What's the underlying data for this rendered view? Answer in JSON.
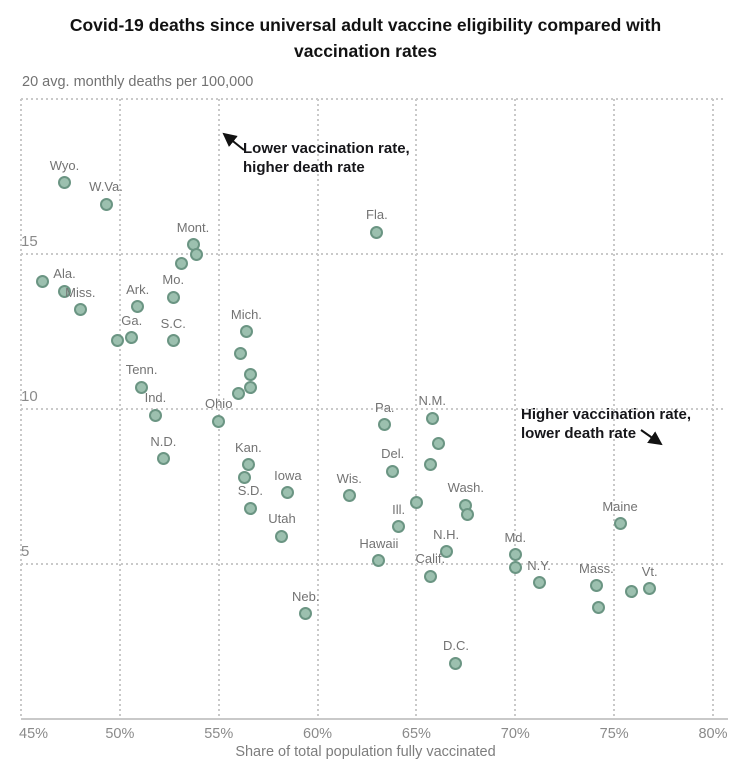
{
  "title": "Covid-19 deaths since universal adult vaccine eligibility compared with vaccination rates",
  "y_axis": {
    "unit_label": "20 avg. monthly deaths per 100,000",
    "tick_labels": [
      "15",
      "10",
      "5"
    ],
    "tick_values": [
      15,
      10,
      5
    ]
  },
  "x_axis": {
    "label": "Share of total population fully vaccinated",
    "tick_labels": [
      "45%",
      "50%",
      "55%",
      "60%",
      "65%",
      "70%",
      "75%",
      "80%"
    ],
    "tick_values": [
      45,
      50,
      55,
      60,
      65,
      70,
      75,
      80
    ]
  },
  "annotations": [
    {
      "id": "lower-vaccination",
      "text": "Lower vaccination rate,\nhigher death rate"
    },
    {
      "id": "higher-vaccination",
      "text": "Higher vaccination rate,\nlower death rate"
    }
  ],
  "colors": {
    "dot_fill": "#9cc0af",
    "dot_stroke": "#6b9583",
    "gridline": "#c9c9c9",
    "title_text": "#121212",
    "axis_text": "#8a8a8a",
    "state_label_text": "#737373",
    "annotation_text": "#16161a"
  },
  "chart_data": {
    "type": "scatter",
    "title": "Covid-19 deaths since universal adult vaccine eligibility compared with vaccination rates",
    "xlabel": "Share of total population fully vaccinated",
    "ylabel": "avg. monthly deaths per 100,000",
    "xlim": [
      45,
      80
    ],
    "ylim": [
      0,
      20
    ],
    "x_ticks": [
      45,
      50,
      55,
      60,
      65,
      70,
      75,
      80
    ],
    "y_gridlines": [
      20,
      15,
      10,
      5
    ],
    "grid": true,
    "points": [
      {
        "state": "Wyo.",
        "x": 47.2,
        "y": 17.3
      },
      {
        "state": "W.Va.",
        "x": 49.3,
        "y": 16.6
      },
      {
        "state": "Mont.",
        "x": 53.7,
        "y": 15.3
      },
      {
        "state": "",
        "x": 53.9,
        "y": 15.0
      },
      {
        "state": "",
        "x": 53.1,
        "y": 14.7
      },
      {
        "state": "",
        "x": 46.1,
        "y": 14.1
      },
      {
        "state": "Ala.",
        "x": 47.2,
        "y": 13.8
      },
      {
        "state": "Miss.",
        "x": 48.0,
        "y": 13.2
      },
      {
        "state": "Ark.",
        "x": 50.9,
        "y": 13.3
      },
      {
        "state": "Mo.",
        "x": 52.7,
        "y": 13.6
      },
      {
        "state": "Fla.",
        "x": 63.0,
        "y": 15.7
      },
      {
        "state": "Ga.",
        "x": 50.6,
        "y": 12.3
      },
      {
        "state": "",
        "x": 49.9,
        "y": 12.2
      },
      {
        "state": "S.C.",
        "x": 52.7,
        "y": 12.2
      },
      {
        "state": "Tenn.",
        "x": 51.1,
        "y": 10.7
      },
      {
        "state": "Ind.",
        "x": 51.8,
        "y": 9.8
      },
      {
        "state": "N.D.",
        "x": 52.2,
        "y": 8.4
      },
      {
        "state": "Ohio",
        "x": 55.0,
        "y": 9.6
      },
      {
        "state": "Mich.",
        "x": 56.4,
        "y": 12.5
      },
      {
        "state": "",
        "x": 56.1,
        "y": 11.8
      },
      {
        "state": "",
        "x": 56.6,
        "y": 11.1
      },
      {
        "state": "",
        "x": 56.6,
        "y": 10.7
      },
      {
        "state": "",
        "x": 56.0,
        "y": 10.5
      },
      {
        "state": "Kan.",
        "x": 56.5,
        "y": 8.2
      },
      {
        "state": "",
        "x": 56.3,
        "y": 7.8
      },
      {
        "state": "S.D.",
        "x": 56.6,
        "y": 6.8
      },
      {
        "state": "Iowa",
        "x": 58.5,
        "y": 7.3
      },
      {
        "state": "Utah",
        "x": 58.2,
        "y": 5.9
      },
      {
        "state": "Neb.",
        "x": 59.4,
        "y": 3.4
      },
      {
        "state": "Wis.",
        "x": 61.6,
        "y": 7.2
      },
      {
        "state": "Pa.",
        "x": 63.4,
        "y": 9.5
      },
      {
        "state": "N.M.",
        "x": 65.8,
        "y": 9.7
      },
      {
        "state": "",
        "x": 66.1,
        "y": 8.9
      },
      {
        "state": "Del.",
        "x": 63.8,
        "y": 8.0
      },
      {
        "state": "",
        "x": 65.7,
        "y": 8.2
      },
      {
        "state": "",
        "x": 65.0,
        "y": 7.0
      },
      {
        "state": "Ill.",
        "x": 64.1,
        "y": 6.2
      },
      {
        "state": "Hawaii",
        "x": 63.1,
        "y": 5.1
      },
      {
        "state": "Wash.",
        "x": 67.5,
        "y": 6.9
      },
      {
        "state": "",
        "x": 67.6,
        "y": 6.6
      },
      {
        "state": "N.H.",
        "x": 66.5,
        "y": 5.4
      },
      {
        "state": "Calif.",
        "x": 65.7,
        "y": 4.6
      },
      {
        "state": "Md.",
        "x": 70.0,
        "y": 5.3
      },
      {
        "state": "",
        "x": 70.0,
        "y": 4.9
      },
      {
        "state": "N.Y.",
        "x": 71.2,
        "y": 4.4
      },
      {
        "state": "Maine",
        "x": 75.3,
        "y": 6.3
      },
      {
        "state": "Mass.",
        "x": 74.1,
        "y": 4.3
      },
      {
        "state": "",
        "x": 74.2,
        "y": 3.6
      },
      {
        "state": "",
        "x": 75.9,
        "y": 4.1
      },
      {
        "state": "Vt.",
        "x": 76.8,
        "y": 4.2
      },
      {
        "state": "D.C.",
        "x": 67.0,
        "y": 1.8
      }
    ]
  }
}
